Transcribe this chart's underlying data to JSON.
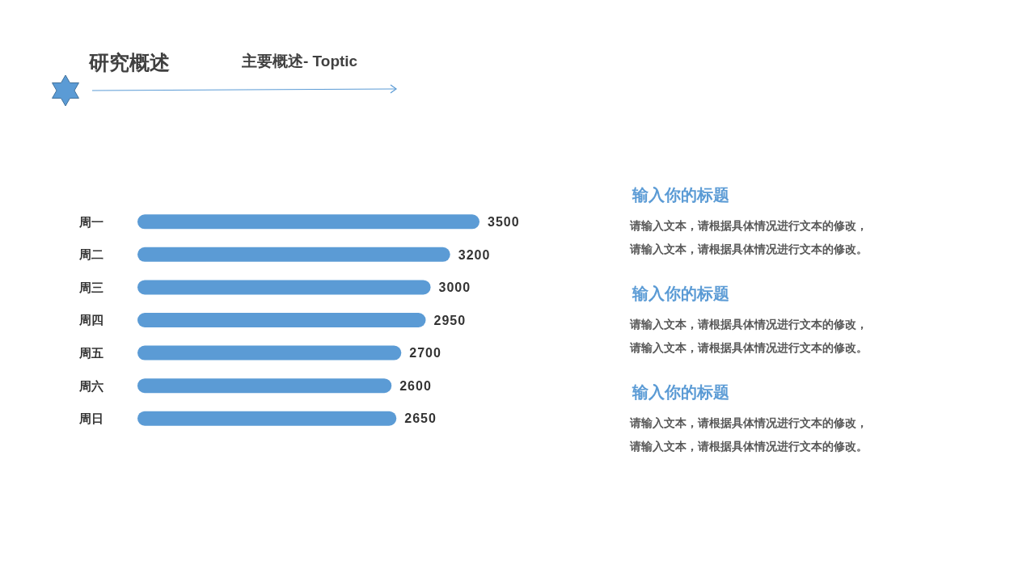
{
  "chart_data": {
    "type": "bar",
    "orientation": "horizontal",
    "title": "研究概述",
    "subtitle": "主要概述- Toptic",
    "categories": [
      "周一",
      "周二",
      "周三",
      "周四",
      "周五",
      "周六",
      "周日"
    ],
    "values": [
      3500,
      3200,
      3000,
      2950,
      2700,
      2600,
      2650
    ],
    "color": "#5b9bd5",
    "data_labels": true,
    "annotations": [
      "输入你的标题",
      "请输入文本，请根据具体情况进行文本的修改，",
      "请输入文本，请根据具体情况进行文本的修改。",
      "输入你的标题",
      "请输入文本，请根据具体情况进行文本的修改，",
      "请输入文本，请根据具体情况进行文本的修改。",
      "输入你的标题",
      "请输入文本，请根据具体情况进行文本的修改，",
      "请输入文本，请根据具体情况进行文本的修改。"
    ]
  }
}
